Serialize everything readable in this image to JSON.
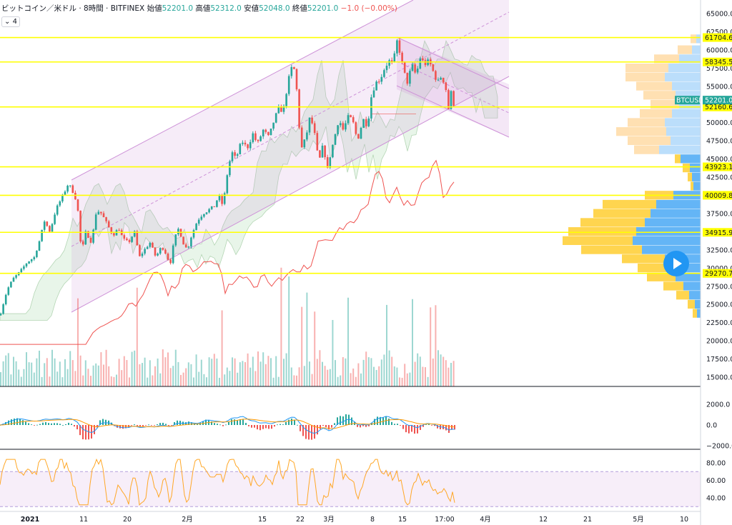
{
  "header": {
    "title": "ビットコイン／米ドル · 8時間 · BITFINEX",
    "open_label": "始値",
    "open": "52201.0",
    "high_label": "高値",
    "high": "52312.0",
    "low_label": "安値",
    "low": "52048.0",
    "close_label": "終値",
    "close": "52201.0",
    "change": "−1.0 (−0.00%)",
    "sub_label": "4"
  },
  "colors": {
    "up": "#26a69a",
    "down": "#ef5350",
    "hline": "#ffff00",
    "channel": "#ce93d8",
    "ma": "#ef5350"
  },
  "chart_data": [
    {
      "type": "candlestick",
      "symbol": "BTCUSD",
      "y_ticks": [
        "65000.0",
        "62500.0",
        "60000.0",
        "57500.0",
        "55000.0",
        "52500.0",
        "50000.0",
        "47500.0",
        "45000.0",
        "42500.0",
        "40000.0",
        "37500.0",
        "35000.0",
        "32500.0",
        "30000.0",
        "27500.0",
        "25000.0",
        "22500.0",
        "20000.0",
        "17500.0",
        "15000.0"
      ],
      "x_ticks": [
        "2021",
        "11",
        "20",
        "2月",
        "15",
        "22",
        "3月",
        "8",
        "15",
        "17:00",
        "4月",
        "12",
        "21",
        "5月",
        "10"
      ],
      "levels": [
        {
          "label": "61704.6",
          "value": 61704.6
        },
        {
          "label": "58345.5",
          "value": 58345.5
        },
        {
          "label": "52160.6",
          "value": 52160.6
        },
        {
          "label": "43923.1",
          "value": 43923.1
        },
        {
          "label": "40009.8",
          "value": 40009.8
        },
        {
          "label": "34915.9",
          "value": 34915.9
        },
        {
          "label": "29270.7",
          "value": 29270.7
        }
      ],
      "last_price": {
        "symbol_label": "BTCUSD",
        "value": "52201.0"
      },
      "anchors": [
        [
          0,
          23500
        ],
        [
          10,
          27000
        ],
        [
          18,
          28500
        ],
        [
          28,
          29500
        ],
        [
          38,
          30800
        ],
        [
          48,
          31500
        ],
        [
          56,
          34000
        ],
        [
          62,
          36500
        ],
        [
          70,
          35000
        ],
        [
          78,
          38000
        ],
        [
          88,
          40000
        ],
        [
          95,
          41500
        ],
        [
          100,
          41000
        ],
        [
          108,
          39000
        ],
        [
          114,
          32000
        ],
        [
          120,
          35000
        ],
        [
          128,
          33500
        ],
        [
          135,
          38000
        ],
        [
          142,
          37500
        ],
        [
          150,
          36000
        ],
        [
          158,
          34500
        ],
        [
          166,
          35500
        ],
        [
          172,
          34000
        ],
        [
          180,
          33500
        ],
        [
          188,
          35000
        ],
        [
          195,
          31500
        ],
        [
          202,
          32500
        ],
        [
          210,
          33500
        ],
        [
          218,
          31500
        ],
        [
          226,
          33000
        ],
        [
          232,
          32000
        ],
        [
          238,
          30500
        ],
        [
          244,
          34000
        ],
        [
          250,
          35500
        ],
        [
          256,
          33500
        ],
        [
          262,
          32500
        ],
        [
          268,
          34500
        ],
        [
          276,
          36500
        ],
        [
          284,
          37500
        ],
        [
          292,
          38000
        ],
        [
          300,
          38500
        ],
        [
          306,
          40000
        ],
        [
          312,
          38500
        ],
        [
          318,
          43000
        ],
        [
          324,
          46000
        ],
        [
          330,
          45000
        ],
        [
          338,
          47500
        ],
        [
          346,
          46500
        ],
        [
          354,
          48500
        ],
        [
          360,
          47000
        ],
        [
          368,
          49000
        ],
        [
          376,
          48000
        ],
        [
          384,
          50500
        ],
        [
          390,
          52000
        ],
        [
          396,
          51500
        ],
        [
          402,
          55000
        ],
        [
          406,
          57000
        ],
        [
          410,
          58000
        ],
        [
          414,
          56000
        ],
        [
          418,
          50000
        ],
        [
          422,
          46500
        ],
        [
          428,
          48000
        ],
        [
          434,
          51000
        ],
        [
          440,
          48500
        ],
        [
          446,
          44500
        ],
        [
          452,
          47000
        ],
        [
          458,
          43500
        ],
        [
          462,
          45500
        ],
        [
          468,
          48000
        ],
        [
          474,
          50500
        ],
        [
          480,
          49000
        ],
        [
          488,
          51000
        ],
        [
          494,
          50000
        ],
        [
          500,
          47500
        ],
        [
          508,
          50500
        ],
        [
          514,
          49500
        ],
        [
          520,
          54000
        ],
        [
          526,
          55500
        ],
        [
          532,
          56000
        ],
        [
          538,
          57500
        ],
        [
          544,
          58500
        ],
        [
          550,
          58000
        ],
        [
          555,
          61300
        ],
        [
          560,
          59500
        ],
        [
          565,
          57000
        ],
        [
          570,
          55500
        ],
        [
          576,
          58000
        ],
        [
          582,
          56500
        ],
        [
          588,
          59000
        ],
        [
          594,
          58000
        ],
        [
          600,
          58500
        ],
        [
          606,
          57000
        ],
        [
          612,
          55500
        ],
        [
          618,
          56500
        ],
        [
          624,
          54500
        ],
        [
          628,
          51500
        ],
        [
          632,
          55000
        ],
        [
          635,
          52200
        ]
      ],
      "indicators": [
        "ichimoku_cloud",
        "moving_average",
        "regression_channel",
        "volume",
        "volume_profile"
      ]
    },
    {
      "type": "line",
      "name": "MACD",
      "y_ticks": [
        "2000.0",
        "0.0",
        "−2000.0"
      ]
    },
    {
      "type": "line",
      "name": "RSI",
      "y_ticks": [
        "80.00",
        "60.00",
        "40.00"
      ]
    }
  ]
}
